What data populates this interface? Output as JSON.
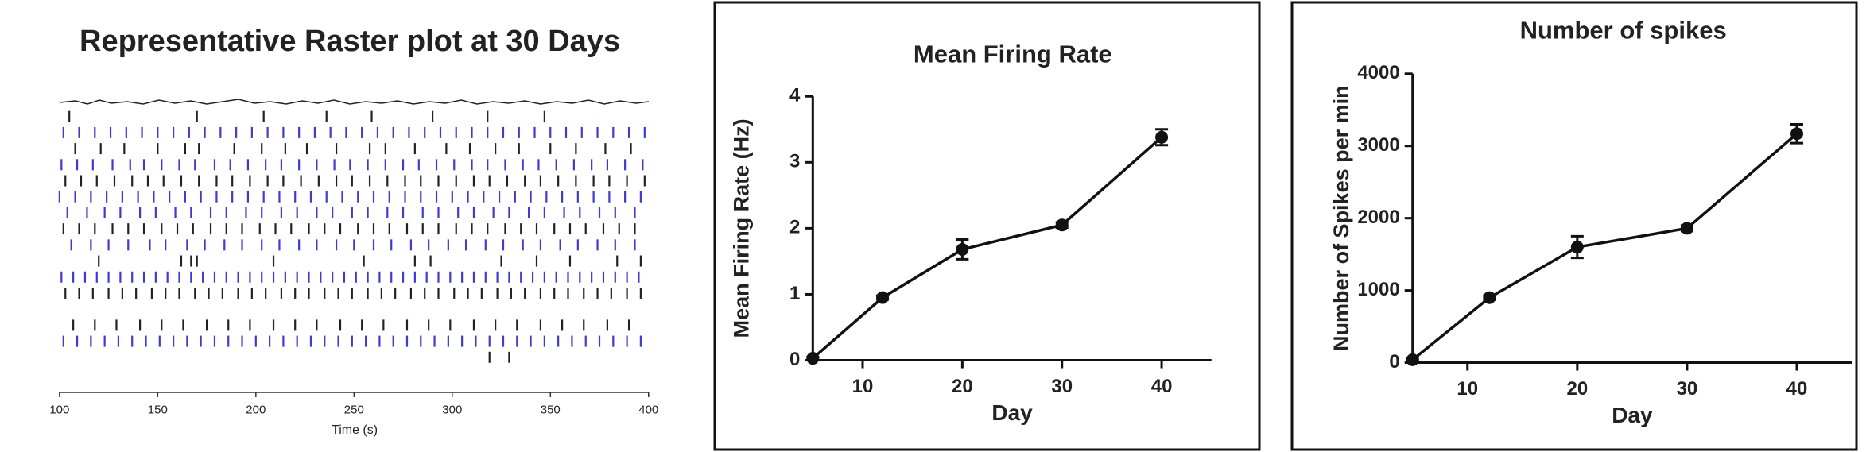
{
  "chart_data": [
    {
      "type": "raster",
      "title": "Representative Raster plot at 30 Days",
      "xlabel": "Time (s)",
      "xlim": [
        100,
        400
      ],
      "xticks": [
        100,
        150,
        200,
        250,
        300,
        350,
        400
      ],
      "rows": [
        {
          "color": "#222222",
          "spikes": [
            105,
            170,
            204,
            236,
            259,
            290,
            318,
            347
          ]
        },
        {
          "color": "#3b3bd6",
          "spikes": [
            102,
            110,
            118,
            126,
            134,
            142,
            150,
            158,
            166,
            174,
            182,
            190,
            198,
            206,
            214,
            222,
            230,
            238,
            246,
            254,
            262,
            270,
            278,
            286,
            294,
            302,
            310,
            318,
            326,
            334,
            342,
            350,
            358,
            366,
            374,
            382,
            390,
            398
          ]
        },
        {
          "color": "#222222",
          "spikes": [
            108,
            121,
            133,
            150,
            164,
            171,
            189,
            203,
            215,
            226,
            241,
            258,
            266,
            281,
            297,
            309,
            322,
            334,
            350,
            363,
            378,
            391
          ]
        },
        {
          "color": "#3b3bd6",
          "spikes": [
            101,
            109,
            117,
            127,
            136,
            143,
            152,
            161,
            169,
            179,
            187,
            196,
            205,
            213,
            222,
            231,
            240,
            248,
            257,
            266,
            275,
            283,
            292,
            301,
            310,
            318,
            327,
            336,
            344,
            353,
            362,
            371,
            379,
            388,
            397
          ]
        },
        {
          "color": "#222222",
          "spikes": [
            103,
            111,
            119,
            128,
            137,
            145,
            153,
            162,
            171,
            180,
            188,
            197,
            206,
            214,
            223,
            232,
            241,
            249,
            258,
            267,
            276,
            284,
            293,
            302,
            311,
            319,
            328,
            337,
            345,
            354,
            363,
            372,
            380,
            389,
            398
          ]
        },
        {
          "color": "#3b3bd6",
          "spikes": [
            100,
            108,
            116,
            124,
            132,
            140,
            148,
            156,
            164,
            172,
            180,
            188,
            196,
            204,
            212,
            220,
            228,
            236,
            244,
            252,
            260,
            268,
            276,
            284,
            292,
            300,
            308,
            316,
            324,
            332,
            340,
            348,
            356,
            364,
            372,
            380,
            388,
            396
          ]
        },
        {
          "color": "#3b3bd6",
          "spikes": [
            104,
            114,
            123,
            131,
            141,
            149,
            159,
            167,
            177,
            185,
            195,
            203,
            213,
            221,
            231,
            239,
            249,
            257,
            267,
            275,
            285,
            293,
            303,
            311,
            321,
            329,
            339,
            347,
            357,
            365,
            375,
            383,
            393
          ]
        },
        {
          "color": "#222222",
          "spikes": [
            102,
            110,
            118,
            127,
            135,
            143,
            152,
            160,
            168,
            177,
            185,
            193,
            202,
            210,
            218,
            227,
            235,
            243,
            252,
            260,
            268,
            277,
            285,
            293,
            302,
            310,
            318,
            327,
            335,
            343,
            352,
            360,
            368,
            377,
            385,
            393
          ]
        },
        {
          "color": "#3b3bd6",
          "spikes": [
            106,
            116,
            125,
            135,
            146,
            154,
            165,
            174,
            184,
            193,
            203,
            212,
            222,
            231,
            241,
            250,
            260,
            269,
            279,
            288,
            298,
            307,
            317,
            326,
            336,
            345,
            355,
            364,
            374,
            383,
            393
          ]
        },
        {
          "color": "#222222",
          "spikes": [
            120,
            162,
            167,
            170,
            209,
            255,
            281,
            289,
            325,
            343,
            360,
            384,
            396
          ]
        },
        {
          "color": "#3b3bd6",
          "spikes": [
            101,
            107,
            113,
            119,
            125,
            131,
            137,
            143,
            149,
            155,
            161,
            167,
            173,
            179,
            185,
            191,
            197,
            203,
            209,
            215,
            221,
            227,
            233,
            239,
            245,
            251,
            257,
            263,
            269,
            275,
            281,
            287,
            293,
            299,
            305,
            311,
            317,
            323,
            329,
            335,
            341,
            347,
            353,
            359,
            365,
            371,
            377,
            383,
            389,
            395
          ]
        },
        {
          "color": "#222222",
          "spikes": [
            103,
            110,
            117,
            125,
            132,
            139,
            147,
            154,
            161,
            169,
            176,
            183,
            191,
            198,
            205,
            213,
            220,
            227,
            235,
            242,
            249,
            257,
            264,
            271,
            279,
            286,
            293,
            301,
            308,
            315,
            323,
            330,
            337,
            345,
            352,
            359,
            367,
            374,
            381,
            389,
            396
          ]
        },
        {
          "color": "#222222",
          "spikes": []
        },
        {
          "color": "#222222",
          "spikes": [
            107,
            118,
            129,
            141,
            152,
            163,
            175,
            186,
            197,
            209,
            220,
            231,
            243,
            254,
            265,
            277,
            288,
            299,
            311,
            322,
            333,
            345,
            356,
            367,
            379,
            390
          ]
        },
        {
          "color": "#3b3bd6",
          "spikes": [
            102,
            109,
            116,
            123,
            130,
            137,
            144,
            151,
            158,
            165,
            172,
            179,
            186,
            193,
            200,
            207,
            214,
            221,
            228,
            235,
            242,
            249,
            256,
            263,
            270,
            277,
            284,
            291,
            298,
            305,
            312,
            319,
            326,
            333,
            340,
            347,
            354,
            361,
            368,
            375,
            382,
            389,
            396
          ]
        },
        {
          "color": "#222222",
          "spikes": [
            319,
            329
          ]
        }
      ]
    },
    {
      "type": "line",
      "title": "Mean Firing Rate",
      "xlabel": "Day",
      "ylabel": "Mean Firing Rate (Hz)",
      "x": [
        5,
        12,
        20,
        30,
        40
      ],
      "values": [
        0.03,
        0.95,
        1.68,
        2.05,
        3.38
      ],
      "errors": [
        0.02,
        0.03,
        0.15,
        0.04,
        0.12
      ],
      "color": "#111111",
      "xlim": [
        5,
        45
      ],
      "xticks": [
        10,
        20,
        30,
        40
      ],
      "ylim": [
        0,
        4
      ],
      "yticks": [
        0,
        1,
        2,
        3,
        4
      ]
    },
    {
      "type": "line",
      "title": "Number of spikes",
      "xlabel": "Day",
      "ylabel": "Number of Spikes per min",
      "x": [
        5,
        12,
        20,
        30,
        40
      ],
      "values": [
        40,
        900,
        1600,
        1860,
        3170
      ],
      "errors": [
        20,
        30,
        150,
        40,
        130
      ],
      "color": "#111111",
      "xlim": [
        5,
        45
      ],
      "xticks": [
        10,
        20,
        30,
        40
      ],
      "ylim": [
        0,
        4000
      ],
      "yticks": [
        0,
        1000,
        2000,
        3000,
        4000
      ]
    }
  ]
}
